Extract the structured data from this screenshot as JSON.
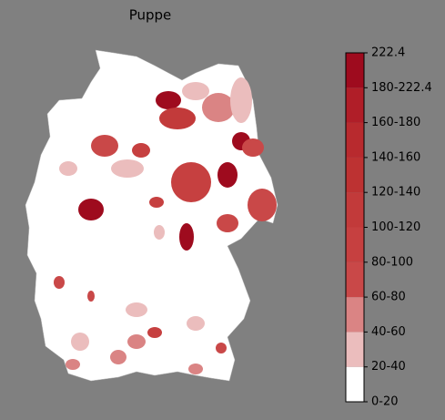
{
  "title": "Puppe",
  "colorbar": {
    "labels": [
      "0-20",
      "20-40",
      "40-60",
      "60-80",
      "80-100",
      "100-120",
      "120-140",
      "140-160",
      "160-180",
      "180-222.4",
      "222.4"
    ],
    "colors": [
      "#ffffff",
      "#ebbdbd",
      "#da8484",
      "#c94848",
      "#c64040",
      "#c23a3a",
      "#bd3232",
      "#b82a2e",
      "#b01e28",
      "#9e0b1e"
    ]
  }
}
